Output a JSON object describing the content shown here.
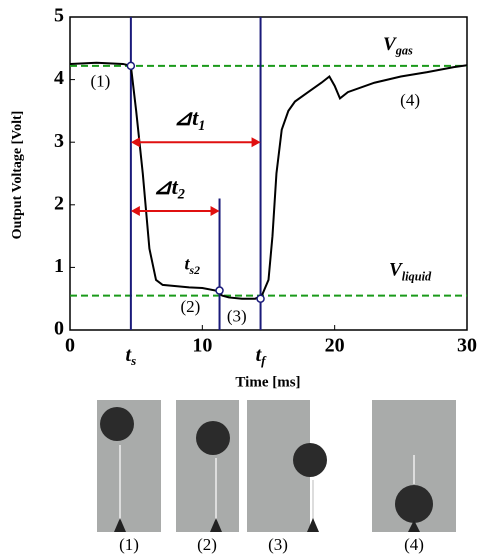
{
  "chart_data": {
    "type": "line",
    "y_label": "Output Voltage [Volt]",
    "x_label": "Time [ms]",
    "xlim": [
      0,
      30
    ],
    "ylim": [
      0,
      5
    ],
    "xticks": [
      0,
      10,
      20,
      30
    ],
    "yticks": [
      0,
      1,
      2,
      3,
      4,
      5
    ],
    "series": [
      {
        "color": "#000000",
        "x": [
          0,
          2,
          4,
          4.6,
          5,
          5.5,
          6,
          6.5,
          7,
          8,
          9,
          10,
          11,
          11.5,
          12,
          13,
          14,
          14.5,
          15,
          15.3,
          15.6,
          16,
          16.5,
          17,
          18,
          19,
          19.6,
          20,
          20.4,
          21,
          23,
          25,
          27,
          29,
          30
        ],
        "values": [
          4.25,
          4.27,
          4.25,
          4.22,
          3.5,
          2.5,
          1.3,
          0.8,
          0.72,
          0.7,
          0.68,
          0.67,
          0.63,
          0.55,
          0.52,
          0.5,
          0.5,
          0.55,
          0.8,
          1.5,
          2.5,
          3.2,
          3.5,
          3.65,
          3.8,
          3.95,
          4.05,
          3.9,
          3.7,
          3.8,
          3.95,
          4.05,
          4.12,
          4.2,
          4.23
        ]
      }
    ],
    "reference_lines": [
      {
        "label": {
          "text": "V",
          "sub": "gas"
        },
        "value": 4.22,
        "color": "#1a9a1a"
      },
      {
        "label": {
          "text": "V",
          "sub": "liquid"
        },
        "value": 0.55,
        "color": "#1a9a1a"
      }
    ],
    "events": [
      {
        "label": {
          "text": "t",
          "sub": "s"
        },
        "x": 4.6,
        "y": 4.22
      },
      {
        "label": {
          "text": "t",
          "sub": "s2"
        },
        "x": 11.3,
        "y": 0.63
      },
      {
        "label": {
          "text": "t",
          "sub": "f"
        },
        "x": 14.4,
        "y": 0.5
      }
    ],
    "event_color": "#1a1a7a",
    "intervals": [
      {
        "label": {
          "text": "⊿t",
          "sub": "1"
        },
        "from": 4.6,
        "to": 14.4
      },
      {
        "label": {
          "text": "⊿t",
          "sub": "2"
        },
        "from": 4.6,
        "to": 11.3
      }
    ],
    "interval_color": "#e01010",
    "annotations": [
      "(1)",
      "(2)",
      "(3)",
      "(4)"
    ]
  },
  "photos": [
    "(1)",
    "(2)",
    "(3)",
    "(4)"
  ]
}
